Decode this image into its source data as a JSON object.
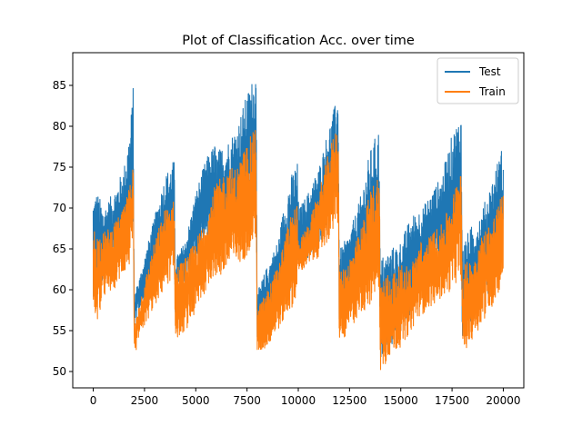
{
  "chart_data": {
    "type": "line",
    "title": "Plot of Classification Acc. over time",
    "xlabel": "",
    "ylabel": "",
    "xlim": [
      -1000,
      21000
    ],
    "ylim": [
      48,
      89
    ],
    "xticks": [
      0,
      2500,
      5000,
      7500,
      10000,
      12500,
      15000,
      17500,
      20000
    ],
    "yticks": [
      50,
      55,
      60,
      65,
      70,
      75,
      80,
      85
    ],
    "legend_position": "top-right",
    "grid": false,
    "series": [
      {
        "name": "Test",
        "color": "#1f77b4",
        "band": {
          "x": [
            0,
            200,
            500,
            1000,
            1500,
            1800,
            1950,
            2000,
            2050,
            2200,
            3000,
            3500,
            3950,
            4000,
            4050,
            4500,
            5000,
            5500,
            5950,
            6000,
            6050,
            6500,
            7000,
            7500,
            7950,
            8000,
            8050,
            8500,
            9000,
            9500,
            9950,
            10000,
            10050,
            10500,
            11000,
            11500,
            11950,
            12000,
            12050,
            12500,
            13000,
            13500,
            13950,
            14000,
            14050,
            14500,
            15000,
            15500,
            15950,
            16000,
            16050,
            16500,
            17000,
            17500,
            17950,
            18000,
            18050,
            18500,
            19000,
            19500,
            20000
          ],
          "low": [
            57,
            60,
            61,
            63,
            64,
            66,
            69,
            55,
            56,
            57,
            62,
            64,
            65,
            55,
            60,
            61,
            63,
            66,
            66,
            62,
            65,
            66,
            67,
            69,
            72,
            53,
            54,
            56,
            58,
            59,
            61,
            63,
            63,
            64,
            65,
            69,
            71,
            55,
            56,
            58,
            60,
            62,
            63,
            51,
            52,
            53,
            55,
            57,
            60,
            60,
            60,
            62,
            63,
            64,
            65,
            53,
            55,
            56,
            59,
            60,
            62
          ],
          "high": [
            72,
            72,
            70,
            72,
            75,
            80,
            85,
            56,
            60,
            61,
            69,
            74,
            76,
            64,
            64,
            66,
            72,
            76,
            78,
            77,
            77,
            78,
            80,
            84,
            87,
            56,
            60,
            63,
            66,
            73,
            76,
            71,
            70,
            72,
            75,
            80,
            84,
            64,
            65,
            67,
            71,
            77,
            80,
            61,
            64,
            65,
            66,
            69,
            70,
            70,
            70,
            72,
            74,
            79,
            82,
            63,
            66,
            68,
            70,
            74,
            78
          ]
        }
      },
      {
        "name": "Train",
        "color": "#ff7f0e",
        "band": {
          "x": [
            0,
            200,
            500,
            1000,
            1500,
            1800,
            1950,
            2000,
            2050,
            2200,
            3000,
            3500,
            3950,
            4000,
            4050,
            4500,
            5000,
            5500,
            5950,
            6000,
            6050,
            6500,
            7000,
            7500,
            7950,
            8000,
            8050,
            8500,
            9000,
            9500,
            9950,
            10000,
            10050,
            10500,
            11000,
            11500,
            11950,
            12000,
            12050,
            12500,
            13000,
            13500,
            13950,
            14000,
            14050,
            14500,
            15000,
            15500,
            15950,
            16000,
            16050,
            16500,
            17000,
            17500,
            17950,
            18000,
            18050,
            18500,
            19000,
            19500,
            20000
          ],
          "low": [
            56,
            56,
            59,
            60,
            62,
            63,
            66,
            53,
            52,
            54,
            58,
            60,
            62,
            54,
            54,
            55,
            57,
            60,
            62,
            60,
            61,
            62,
            63,
            64,
            66,
            52,
            52,
            53,
            55,
            57,
            59,
            63,
            62,
            63,
            64,
            66,
            68,
            54,
            53,
            55,
            57,
            58,
            60,
            50,
            50,
            52,
            53,
            55,
            57,
            56,
            57,
            58,
            59,
            60,
            62,
            52,
            52,
            54,
            56,
            58,
            61
          ],
          "high": [
            68,
            67,
            67,
            68,
            70,
            73,
            78,
            54,
            56,
            58,
            66,
            70,
            71,
            63,
            63,
            64,
            66,
            69,
            73,
            73,
            73,
            75,
            75,
            78,
            80,
            55,
            58,
            60,
            63,
            68,
            71,
            65,
            66,
            68,
            72,
            77,
            81,
            63,
            62,
            64,
            67,
            72,
            75,
            60,
            62,
            62,
            63,
            63,
            66,
            66,
            65,
            67,
            68,
            71,
            76,
            62,
            63,
            64,
            67,
            69,
            72
          ]
        }
      }
    ]
  }
}
